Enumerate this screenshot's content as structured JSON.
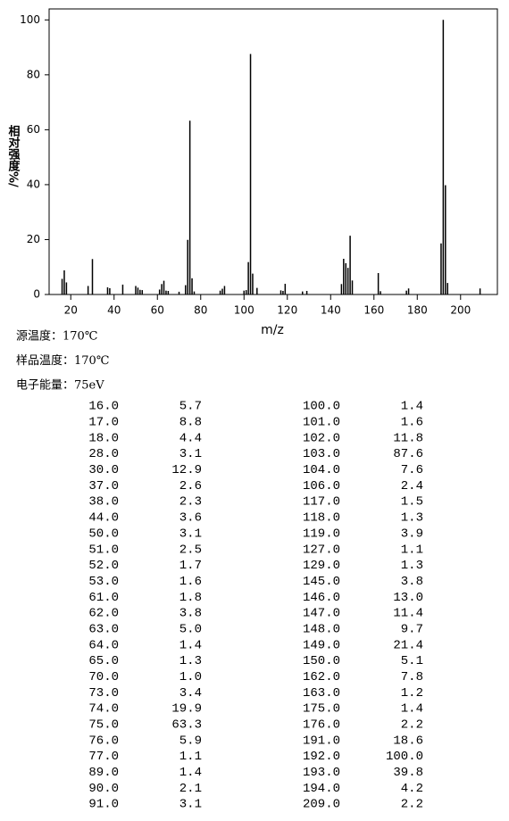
{
  "chart_data": {
    "type": "bar",
    "ylabel": "相对强度%/",
    "xlabel": "m/z",
    "x": [
      16,
      17,
      18,
      28,
      30,
      37,
      38,
      44,
      50,
      51,
      52,
      53,
      61,
      62,
      63,
      64,
      65,
      70,
      73,
      74,
      75,
      76,
      77,
      89,
      90,
      91,
      100,
      101,
      102,
      103,
      104,
      106,
      117,
      118,
      119,
      127,
      129,
      145,
      146,
      147,
      148,
      149,
      150,
      162,
      163,
      175,
      176,
      191,
      192,
      193,
      194,
      209
    ],
    "values": [
      5.7,
      8.8,
      4.4,
      3.1,
      12.9,
      2.6,
      2.3,
      3.6,
      3.1,
      2.5,
      1.7,
      1.6,
      1.8,
      3.8,
      5.0,
      1.4,
      1.3,
      1.0,
      3.4,
      19.9,
      63.3,
      5.9,
      1.1,
      1.4,
      2.1,
      3.1,
      1.4,
      1.6,
      11.8,
      87.6,
      7.6,
      2.4,
      1.5,
      1.3,
      3.9,
      1.1,
      1.3,
      3.8,
      13.0,
      11.4,
      9.7,
      21.4,
      5.1,
      7.8,
      1.2,
      1.4,
      2.2,
      18.6,
      100.0,
      39.8,
      4.2,
      2.2
    ],
    "color": "#000000",
    "xlim": [
      10,
      217
    ],
    "xticks": [
      20,
      40,
      60,
      80,
      100,
      120,
      140,
      160,
      180,
      200
    ],
    "ylim": [
      0,
      104
    ],
    "yticks": [
      0,
      20,
      40,
      60,
      80,
      100
    ]
  },
  "info": [
    "源温度：170℃",
    "样品温度：170℃",
    "电子能量：75eV"
  ],
  "table": {
    "rows": [
      [
        "16.0",
        "5.7",
        "100.0",
        "1.4"
      ],
      [
        "17.0",
        "8.8",
        "101.0",
        "1.6"
      ],
      [
        "18.0",
        "4.4",
        "102.0",
        "11.8"
      ],
      [
        "28.0",
        "3.1",
        "103.0",
        "87.6"
      ],
      [
        "30.0",
        "12.9",
        "104.0",
        "7.6"
      ],
      [
        "37.0",
        "2.6",
        "106.0",
        "2.4"
      ],
      [
        "38.0",
        "2.3",
        "117.0",
        "1.5"
      ],
      [
        "44.0",
        "3.6",
        "118.0",
        "1.3"
      ],
      [
        "50.0",
        "3.1",
        "119.0",
        "3.9"
      ],
      [
        "51.0",
        "2.5",
        "127.0",
        "1.1"
      ],
      [
        "52.0",
        "1.7",
        "129.0",
        "1.3"
      ],
      [
        "53.0",
        "1.6",
        "145.0",
        "3.8"
      ],
      [
        "61.0",
        "1.8",
        "146.0",
        "13.0"
      ],
      [
        "62.0",
        "3.8",
        "147.0",
        "11.4"
      ],
      [
        "63.0",
        "5.0",
        "148.0",
        "9.7"
      ],
      [
        "64.0",
        "1.4",
        "149.0",
        "21.4"
      ],
      [
        "65.0",
        "1.3",
        "150.0",
        "5.1"
      ],
      [
        "70.0",
        "1.0",
        "162.0",
        "7.8"
      ],
      [
        "73.0",
        "3.4",
        "163.0",
        "1.2"
      ],
      [
        "74.0",
        "19.9",
        "175.0",
        "1.4"
      ],
      [
        "75.0",
        "63.3",
        "176.0",
        "2.2"
      ],
      [
        "76.0",
        "5.9",
        "191.0",
        "18.6"
      ],
      [
        "77.0",
        "1.1",
        "192.0",
        "100.0"
      ],
      [
        "89.0",
        "1.4",
        "193.0",
        "39.8"
      ],
      [
        "90.0",
        "2.1",
        "194.0",
        "4.2"
      ],
      [
        "91.0",
        "3.1",
        "209.0",
        "2.2"
      ]
    ]
  }
}
